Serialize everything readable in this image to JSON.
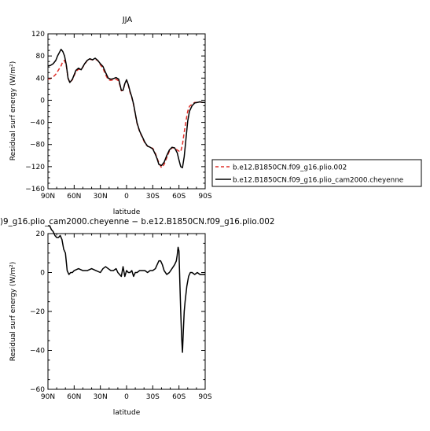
{
  "chart_data": [
    {
      "type": "line",
      "title": "JJA",
      "xlabel": "latitude",
      "ylabel": "Residual surf energy (W/m²)",
      "xlim": [
        90,
        -90
      ],
      "ylim": [
        -160,
        120
      ],
      "xticks": [
        {
          "v": 90,
          "label": "90N"
        },
        {
          "v": 60,
          "label": "60N"
        },
        {
          "v": 30,
          "label": "30N"
        },
        {
          "v": 0,
          "label": "0"
        },
        {
          "v": -30,
          "label": "30S"
        },
        {
          "v": -60,
          "label": "60S"
        },
        {
          "v": -90,
          "label": "90S"
        }
      ],
      "yticks": [
        {
          "v": 120,
          "label": "120"
        },
        {
          "v": 80,
          "label": "80"
        },
        {
          "v": 40,
          "label": "40"
        },
        {
          "v": 0,
          "label": "0"
        },
        {
          "v": -40,
          "label": "−40"
        },
        {
          "v": -80,
          "label": "−80"
        },
        {
          "v": -120,
          "label": "−120"
        },
        {
          "v": -160,
          "label": "−160"
        }
      ],
      "legend_position": "right",
      "series": [
        {
          "name": "b.e12.B1850CN.f09_g16.plio.002",
          "color": "#e0302a",
          "dash": "dashed",
          "x": [
            90,
            87,
            84,
            81,
            79,
            77,
            75,
            73,
            71,
            69,
            67,
            65,
            62,
            58,
            55,
            52,
            48,
            45,
            42,
            39,
            36,
            33,
            30,
            27,
            24,
            21,
            18,
            15,
            12,
            9,
            6,
            4,
            2,
            0,
            -2,
            -4,
            -6,
            -8,
            -10,
            -12,
            -15,
            -18,
            -21,
            -24,
            -27,
            -30,
            -33,
            -35,
            -37,
            -40,
            -43,
            -46,
            -49,
            -52,
            -55,
            -58,
            -60,
            -62,
            -64,
            -66,
            -68,
            -70,
            -72,
            -75,
            -78,
            -81,
            -84,
            -87,
            -90
          ],
          "y": [
            38,
            39,
            42,
            47,
            52,
            57,
            62,
            70,
            72,
            62,
            40,
            32,
            37,
            52,
            56,
            55,
            65,
            72,
            74,
            73,
            74,
            72,
            64,
            58,
            46,
            37,
            36,
            37,
            38,
            35,
            17,
            18,
            30,
            36,
            27,
            14,
            5,
            -8,
            -25,
            -42,
            -57,
            -67,
            -78,
            -83,
            -85,
            -87,
            -96,
            -105,
            -113,
            -122,
            -116,
            -104,
            -92,
            -86,
            -86,
            -90,
            -92,
            -93,
            -80,
            -58,
            -38,
            -20,
            -11,
            -7,
            -4,
            -4,
            -3,
            -4,
            -4
          ]
        },
        {
          "name": "b.e12.B1850CN.f09_g16.plio_cam2000.cheyenne",
          "color": "#000000",
          "dash": "solid",
          "x": [
            90,
            87,
            84,
            81,
            79,
            77,
            75,
            73,
            71,
            69,
            67,
            65,
            62,
            58,
            55,
            52,
            48,
            45,
            42,
            39,
            36,
            33,
            30,
            27,
            24,
            21,
            18,
            15,
            12,
            9,
            6,
            4,
            2,
            0,
            -2,
            -4,
            -6,
            -8,
            -10,
            -12,
            -15,
            -18,
            -21,
            -24,
            -27,
            -30,
            -33,
            -35,
            -37,
            -40,
            -43,
            -46,
            -49,
            -52,
            -55,
            -58,
            -60,
            -62,
            -64,
            -66,
            -68,
            -70,
            -72,
            -75,
            -78,
            -81,
            -84,
            -87,
            -90
          ],
          "y": [
            62,
            63,
            66,
            72,
            80,
            86,
            92,
            88,
            80,
            64,
            40,
            32,
            38,
            54,
            58,
            55,
            66,
            72,
            75,
            73,
            76,
            72,
            66,
            61,
            50,
            40,
            38,
            39,
            41,
            38,
            18,
            18,
            30,
            37,
            28,
            16,
            6,
            -7,
            -24,
            -41,
            -56,
            -66,
            -76,
            -83,
            -85,
            -88,
            -98,
            -106,
            -116,
            -118,
            -112,
            -100,
            -90,
            -85,
            -86,
            -95,
            -108,
            -120,
            -122,
            -102,
            -70,
            -38,
            -20,
            -10,
            -5,
            -4,
            -3,
            -4,
            -4
          ]
        }
      ]
    },
    {
      "type": "line",
      "title": ")9_g16.plio_cam2000.cheyenne − b.e12.B1850CN.f09_g16.plio.002",
      "xlabel": "latitude",
      "ylabel": "Residual surf energy (W/m²)",
      "xlim": [
        90,
        -90
      ],
      "ylim": [
        -60,
        20
      ],
      "xticks": [
        {
          "v": 90,
          "label": "90N"
        },
        {
          "v": 60,
          "label": "60N"
        },
        {
          "v": 30,
          "label": "30N"
        },
        {
          "v": 0,
          "label": "0"
        },
        {
          "v": -30,
          "label": "30S"
        },
        {
          "v": -60,
          "label": "60S"
        },
        {
          "v": -90,
          "label": "90S"
        }
      ],
      "yticks": [
        {
          "v": 20,
          "label": "20"
        },
        {
          "v": 0,
          "label": "0"
        },
        {
          "v": -20,
          "label": "−20"
        },
        {
          "v": -40,
          "label": "−40"
        },
        {
          "v": -60,
          "label": "−60"
        }
      ],
      "series": [
        {
          "color": "#000000",
          "dash": "solid",
          "x": [
            90,
            88,
            86,
            84,
            82,
            80,
            78,
            76,
            74,
            72,
            70,
            68,
            66,
            64,
            62,
            60,
            55,
            50,
            45,
            40,
            35,
            30,
            27,
            24,
            21,
            18,
            15,
            12,
            10,
            8,
            6,
            4,
            2,
            0,
            -2,
            -4,
            -6,
            -8,
            -10,
            -12,
            -15,
            -18,
            -21,
            -24,
            -27,
            -30,
            -33,
            -35,
            -37,
            -39,
            -41,
            -43,
            -46,
            -49,
            -52,
            -55,
            -57,
            -58,
            -59,
            -60,
            -61,
            -62,
            -63,
            -64,
            -65,
            -66,
            -67,
            -69,
            -71,
            -73,
            -75,
            -78,
            -81,
            -84,
            -87,
            -90
          ],
          "y": [
            24,
            24,
            22,
            21,
            19,
            18,
            18,
            19,
            17,
            12,
            10,
            1,
            -1,
            0,
            0,
            1,
            2,
            1,
            1,
            2,
            1,
            0,
            2,
            3,
            2,
            1,
            1,
            2,
            0,
            -1,
            -2,
            3,
            -2,
            1,
            0,
            0,
            1,
            -2,
            0,
            0,
            1,
            1,
            1,
            0,
            1,
            1,
            2,
            4,
            6,
            6,
            4,
            1,
            -1,
            0,
            2,
            4,
            6,
            9,
            13,
            11,
            -5,
            -20,
            -33,
            -41,
            -30,
            -20,
            -15,
            -7,
            -2,
            0,
            0,
            -1,
            0,
            -1,
            -1,
            -1
          ]
        }
      ]
    }
  ]
}
